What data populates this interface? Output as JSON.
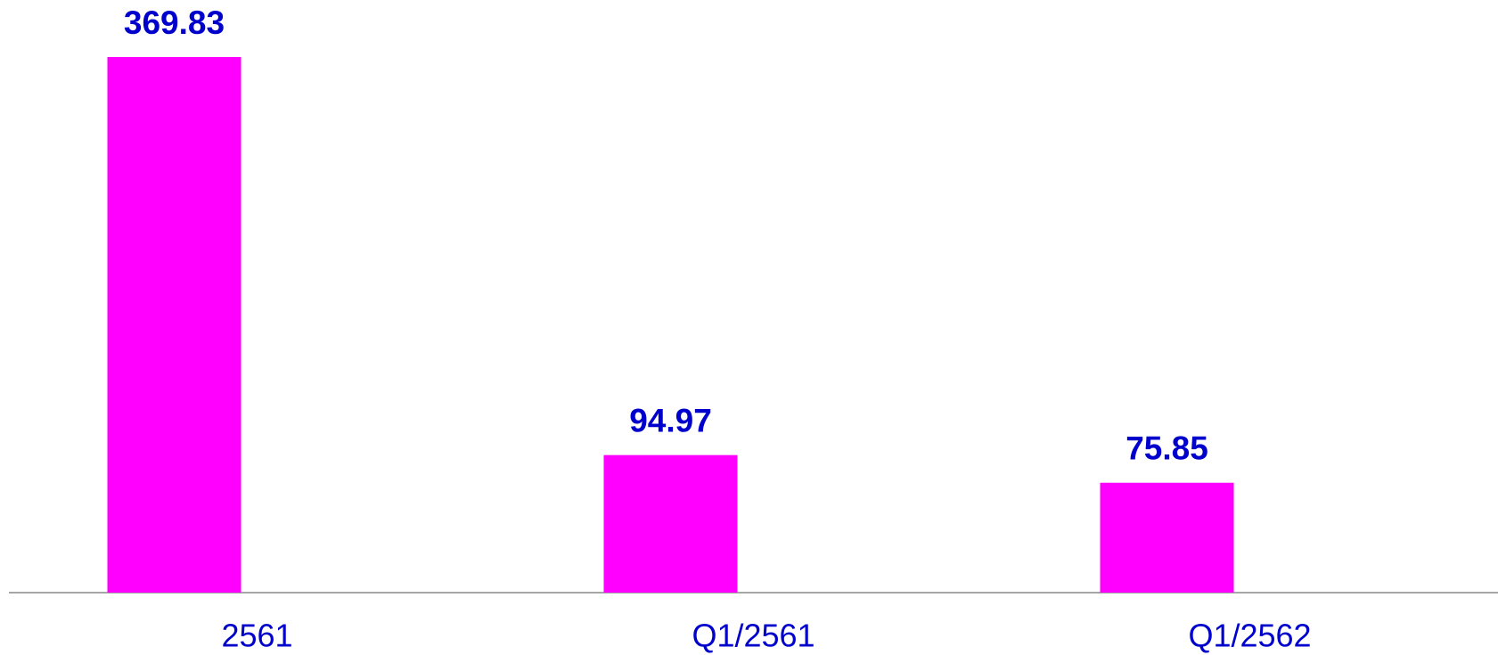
{
  "chart_data": {
    "type": "bar",
    "categories": [
      "2561",
      "Q1/2561",
      "Q1/2562"
    ],
    "values": [
      369.83,
      94.97,
      75.85
    ],
    "color": "#ff00ff",
    "label_color": "#0000cc"
  }
}
